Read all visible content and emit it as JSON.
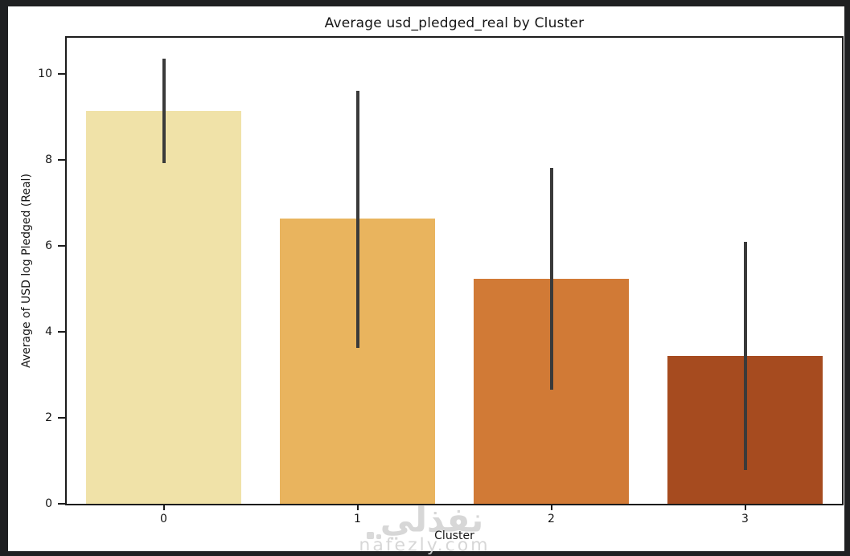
{
  "frame": {
    "border_color": "#1f2022",
    "figure_bg": "#ffffff",
    "text_color": "#161616",
    "axis_color": "#1c1c1c"
  },
  "chart_data": {
    "type": "bar",
    "title": "Average usd_pledged_real by Cluster",
    "xlabel": "Cluster",
    "ylabel": "Average of USD log Pledged (Real)",
    "categories": [
      "0",
      "1",
      "2",
      "3"
    ],
    "values": [
      9.14,
      6.63,
      5.23,
      3.44
    ],
    "error_low": [
      7.92,
      3.62,
      2.65,
      0.79
    ],
    "error_high": [
      10.35,
      9.61,
      7.81,
      6.09
    ],
    "bar_colors": [
      "#f0e2a8",
      "#e9b45e",
      "#d17a36",
      "#a64b1f"
    ],
    "error_color": "#3a3a3a",
    "yticks": [
      0,
      2,
      4,
      6,
      8,
      10
    ],
    "ylim": [
      0,
      10.84
    ],
    "bar_rel_width": 0.8,
    "grid": "off",
    "legend": "none"
  },
  "watermark": {
    "arabic": "نفذلي",
    "domain": "nafezly.com",
    "color": "#d4d4d4"
  }
}
